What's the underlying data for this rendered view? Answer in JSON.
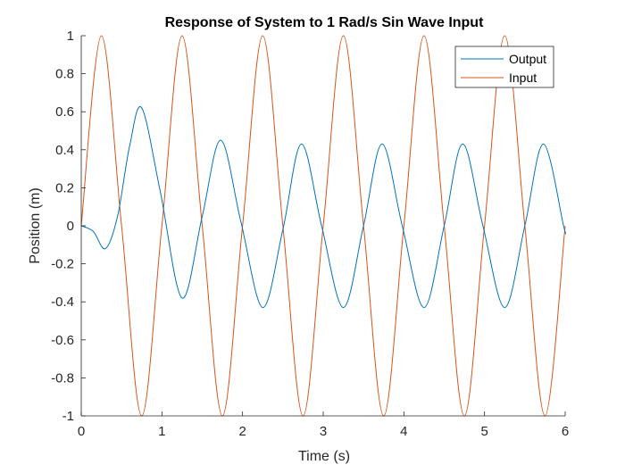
{
  "chart_data": {
    "type": "line",
    "title": "Response of System to 1 Rad/s Sin Wave Input",
    "xlabel": "Time (s)",
    "ylabel": "Position (m)",
    "xlim": [
      0,
      6
    ],
    "ylim": [
      -1,
      1
    ],
    "xticks": [
      0,
      1,
      2,
      3,
      4,
      5,
      6
    ],
    "xtick_labels": [
      "0",
      "1",
      "2",
      "3",
      "4",
      "5",
      "6"
    ],
    "yticks": [
      -1,
      -0.8,
      -0.6,
      -0.4,
      -0.2,
      0,
      0.2,
      0.4,
      0.6,
      0.8,
      1
    ],
    "ytick_labels": [
      "-1",
      "-0.8",
      "-0.6",
      "-0.4",
      "-0.2",
      "0",
      "0.2",
      "0.4",
      "0.6",
      "0.8",
      "1"
    ],
    "grid": false,
    "legend": "top-right",
    "series": [
      {
        "name": "Output",
        "color": "#0072BD",
        "x": [
          0,
          0.15,
          0.3,
          0.45,
          0.6,
          0.75,
          0.98,
          1.25,
          1.5,
          1.73,
          1.98,
          2.25,
          2.5,
          2.73,
          2.98,
          3.25,
          3.5,
          3.73,
          3.98,
          4.25,
          4.5,
          4.73,
          4.98,
          5.25,
          5.5,
          5.73,
          5.98,
          6.0
        ],
        "y": [
          0,
          -0.03,
          -0.12,
          0.05,
          0.42,
          0.62,
          0.18,
          -0.38,
          0.05,
          0.45,
          0.02,
          -0.43,
          -0.02,
          0.43,
          0.0,
          -0.43,
          0.0,
          0.43,
          0.0,
          -0.43,
          0.0,
          0.43,
          0.0,
          -0.43,
          0.0,
          0.43,
          0.0,
          -0.03
        ]
      },
      {
        "name": "Input",
        "color": "#D95319",
        "x": [
          0,
          0.25,
          0.5,
          0.75,
          1.0,
          1.25,
          1.5,
          1.75,
          2.0,
          2.25,
          2.5,
          2.75,
          3.0,
          3.25,
          3.5,
          3.75,
          4.0,
          4.25,
          4.5,
          4.75,
          5.0,
          5.25,
          5.5,
          5.75,
          6.0
        ],
        "y": [
          0,
          1,
          0,
          -1,
          0,
          1,
          0,
          -1,
          0,
          1,
          0,
          -1,
          0,
          1,
          0,
          -1,
          0,
          1,
          0,
          -1,
          0,
          1,
          0,
          -1,
          0
        ]
      }
    ]
  }
}
